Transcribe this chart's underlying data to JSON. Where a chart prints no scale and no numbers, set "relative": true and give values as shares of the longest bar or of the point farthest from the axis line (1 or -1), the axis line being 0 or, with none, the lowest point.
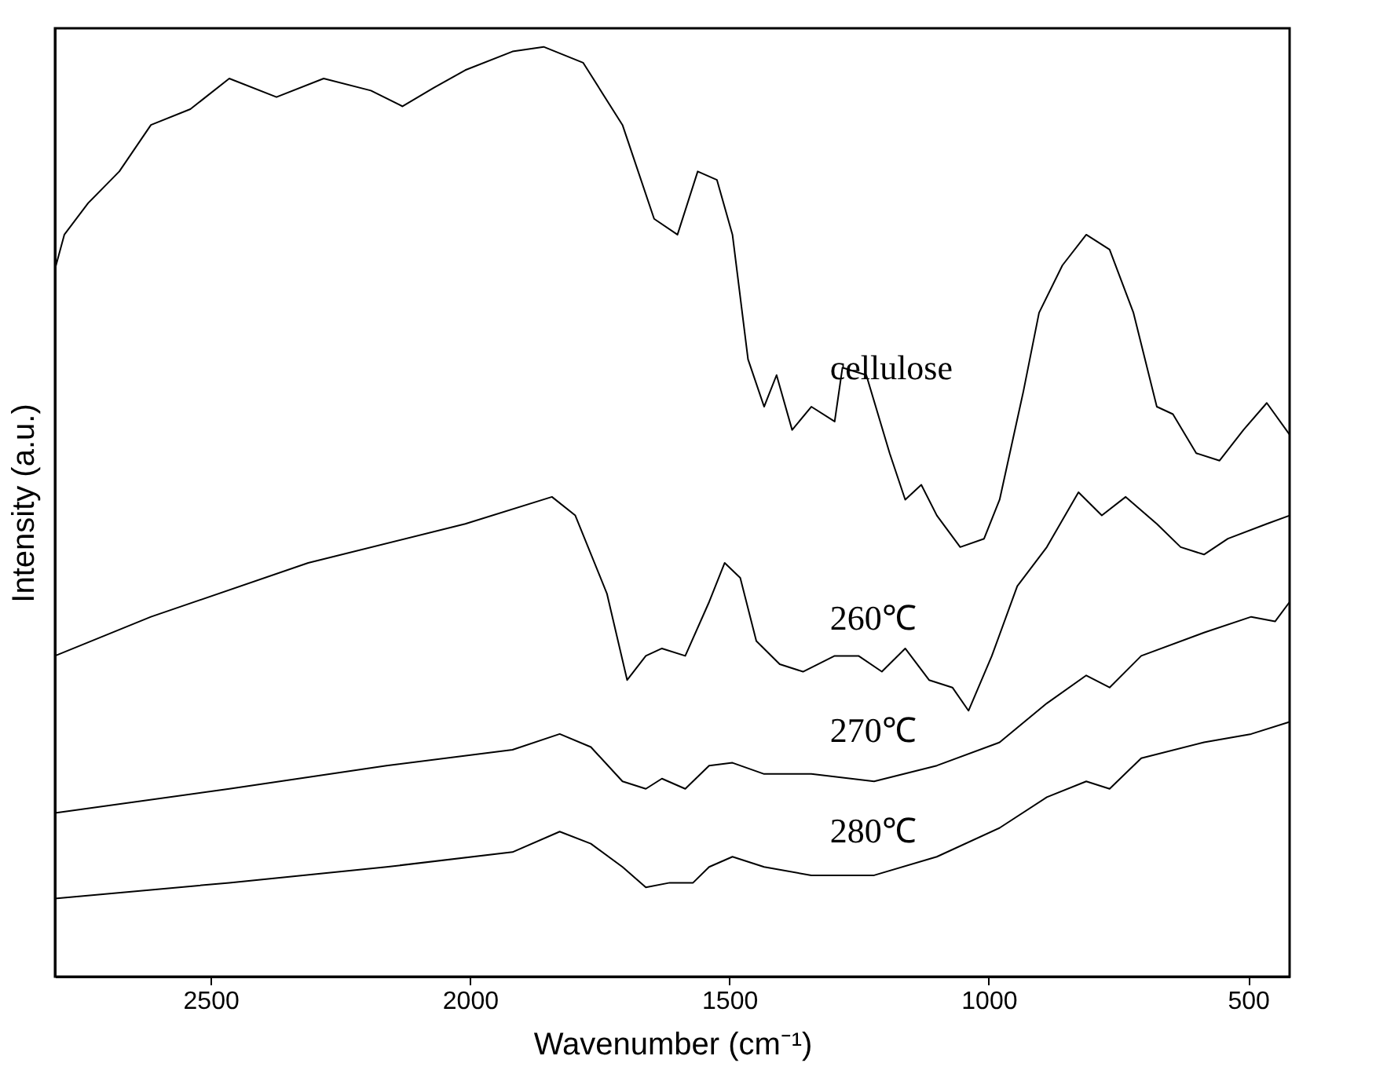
{
  "chart_data": {
    "type": "line",
    "relative": true,
    "xlabel": "Wavenumber (cm⁻¹)",
    "ylabel": "Intensity (a.u.)",
    "xlim": [
      2800,
      420
    ],
    "xticks": [
      2500,
      2000,
      1500,
      1000,
      500
    ],
    "grid": false,
    "legend": false,
    "marker": "none",
    "line_style": "solid",
    "tick_labels": "x",
    "series": [
      {
        "name": "cellulose",
        "color": "#000000",
        "x": [
          2800,
          2782,
          2736,
          2676,
          2615,
          2539,
          2464,
          2373,
          2282,
          2191,
          2130,
          2070,
          2009,
          1918,
          1858,
          1782,
          1706,
          1645,
          1600,
          1561,
          1524,
          1494,
          1464,
          1433,
          1409,
          1379,
          1342,
          1297,
          1282,
          1236,
          1191,
          1161,
          1130,
          1100,
          1055,
          1009,
          979,
          933,
          903,
          858,
          812,
          767,
          721,
          676,
          645,
          600,
          555,
          509,
          464,
          420
        ],
        "values": [
          0.761,
          0.798,
          0.832,
          0.866,
          0.916,
          0.933,
          0.966,
          0.946,
          0.966,
          0.953,
          0.936,
          0.956,
          0.975,
          0.995,
          1.0,
          0.983,
          0.916,
          0.815,
          0.798,
          0.866,
          0.857,
          0.798,
          0.664,
          0.613,
          0.647,
          0.588,
          0.613,
          0.597,
          0.655,
          0.647,
          0.563,
          0.513,
          0.529,
          0.496,
          0.462,
          0.471,
          0.513,
          0.63,
          0.714,
          0.765,
          0.798,
          0.782,
          0.714,
          0.613,
          0.605,
          0.563,
          0.555,
          0.588,
          0.617,
          0.583
        ]
      },
      {
        "name": "260℃",
        "color": "#000000",
        "x": [
          2800,
          2615,
          2312,
          2009,
          1842,
          1797,
          1736,
          1697,
          1661,
          1630,
          1585,
          1539,
          1509,
          1479,
          1448,
          1403,
          1358,
          1297,
          1251,
          1206,
          1161,
          1115,
          1070,
          1039,
          994,
          945,
          888,
          827,
          782,
          736,
          676,
          630,
          585,
          539,
          464,
          420
        ],
        "values": [
          0.345,
          0.387,
          0.445,
          0.487,
          0.516,
          0.496,
          0.412,
          0.319,
          0.345,
          0.353,
          0.345,
          0.403,
          0.445,
          0.429,
          0.361,
          0.336,
          0.328,
          0.345,
          0.345,
          0.328,
          0.353,
          0.319,
          0.311,
          0.286,
          0.345,
          0.42,
          0.462,
          0.521,
          0.496,
          0.516,
          0.487,
          0.462,
          0.454,
          0.471,
          0.487,
          0.496
        ]
      },
      {
        "name": "270℃",
        "color": "#000000",
        "x": [
          2800,
          2464,
          2161,
          1918,
          1827,
          1767,
          1706,
          1661,
          1630,
          1585,
          1539,
          1494,
          1433,
          1342,
          1221,
          1100,
          979,
          888,
          812,
          767,
          706,
          585,
          494,
          448,
          420
        ],
        "values": [
          0.176,
          0.202,
          0.227,
          0.244,
          0.261,
          0.247,
          0.21,
          0.202,
          0.213,
          0.202,
          0.227,
          0.23,
          0.218,
          0.218,
          0.21,
          0.227,
          0.252,
          0.294,
          0.324,
          0.311,
          0.345,
          0.37,
          0.387,
          0.382,
          0.403
        ]
      },
      {
        "name": "280℃",
        "color": "#000000",
        "x": [
          2800,
          2464,
          2161,
          1918,
          1827,
          1767,
          1706,
          1661,
          1615,
          1570,
          1539,
          1494,
          1433,
          1342,
          1221,
          1100,
          979,
          888,
          812,
          767,
          706,
          585,
          494,
          420
        ],
        "values": [
          0.084,
          0.101,
          0.118,
          0.134,
          0.156,
          0.143,
          0.118,
          0.096,
          0.101,
          0.101,
          0.118,
          0.129,
          0.118,
          0.109,
          0.109,
          0.129,
          0.16,
          0.193,
          0.21,
          0.202,
          0.235,
          0.252,
          0.261,
          0.274
        ]
      }
    ]
  }
}
